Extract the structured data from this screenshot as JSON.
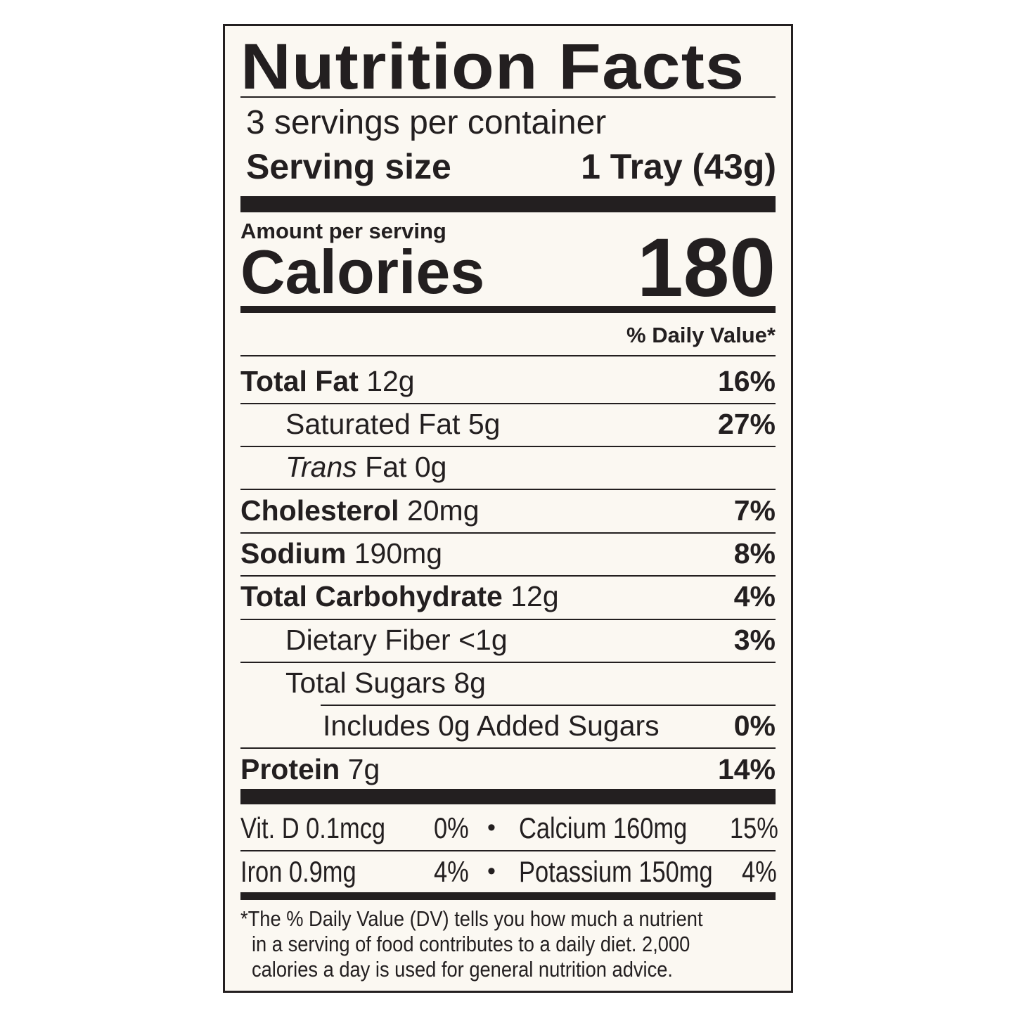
{
  "title": "Nutrition Facts",
  "servings_per_container": "3 servings per container",
  "serving_size": {
    "label": "Serving size",
    "value": "1 Tray (43g)"
  },
  "amount_per_serving": "Amount per serving",
  "calories": {
    "label": "Calories",
    "value": "180"
  },
  "daily_value_header": "% Daily Value*",
  "nutrients": [
    {
      "name": "Total Fat",
      "amount": "12g",
      "dv": "16%",
      "bold": true,
      "indent": 0
    },
    {
      "name": "Saturated Fat",
      "amount": "5g",
      "dv": "27%",
      "bold": false,
      "indent": 1
    },
    {
      "name_italic": "Trans",
      "name": "Fat",
      "amount": "0g",
      "dv": "",
      "bold": false,
      "indent": 1
    },
    {
      "name": "Cholesterol",
      "amount": "20mg",
      "dv": "7%",
      "bold": true,
      "indent": 0
    },
    {
      "name": "Sodium",
      "amount": "190mg",
      "dv": "8%",
      "bold": true,
      "indent": 0
    },
    {
      "name": "Total Carbohydrate",
      "amount": "12g",
      "dv": "4%",
      "bold": true,
      "indent": 0
    },
    {
      "name": "Dietary Fiber",
      "amount": "<1g",
      "dv": "3%",
      "bold": false,
      "indent": 1
    },
    {
      "name": "Total Sugars",
      "amount": "8g",
      "dv": "",
      "bold": false,
      "indent": 1
    },
    {
      "name": "Includes 0g Added Sugars",
      "amount": "",
      "dv": "0%",
      "bold": false,
      "indent": 2
    },
    {
      "name": "Protein",
      "amount": "7g",
      "dv": "14%",
      "bold": true,
      "indent": 0
    }
  ],
  "micronutrients": [
    {
      "left": "Vit. D 0.1mcg",
      "left_dv": "0%",
      "bullet": "•",
      "right": "Calcium 160mg",
      "right_dv": "15%"
    },
    {
      "left": "Iron 0.9mg",
      "left_dv": "4%",
      "bullet": "•",
      "right": "Potassium 150mg",
      "right_dv": "4%"
    }
  ],
  "footnote": [
    "*The % Daily Value (DV) tells you how much a nutrient",
    "in a serving of food contributes to a daily diet. 2,000",
    "calories a day is used for general nutrition advice."
  ],
  "colors": {
    "ink": "#231f20",
    "background": "#fbf8f2"
  }
}
